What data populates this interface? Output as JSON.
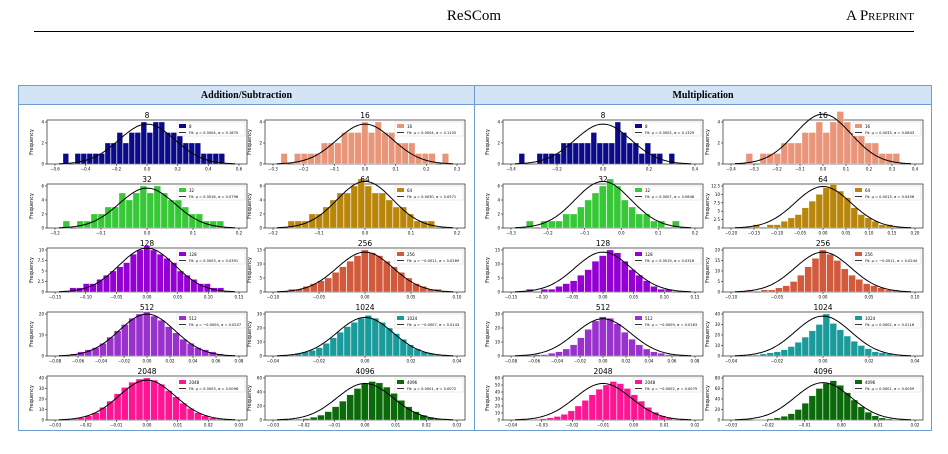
{
  "header": {
    "title": "ReSCom",
    "label": "A Preprint"
  },
  "panels": [
    {
      "title": "Addition/Subtraction"
    },
    {
      "title": "Multiplication"
    }
  ],
  "ylabel": "Frequency",
  "chart_data": [
    {
      "type": "bar",
      "panel": 0,
      "title": "8",
      "color": "#0b0b8a",
      "ymax": 4,
      "yticks": [
        0,
        2,
        4
      ],
      "xlim": [
        -0.6,
        0.6
      ],
      "xticks": [
        "−0.6",
        "−0.4",
        "−0.2",
        "0.0",
        "0.2",
        "0.4",
        "0.6"
      ],
      "values": [
        1,
        0,
        1,
        1,
        1,
        1,
        1,
        2,
        2,
        3,
        2,
        3,
        3,
        4,
        3,
        4,
        4,
        3,
        3,
        3,
        2,
        2,
        2,
        1,
        1,
        1,
        1,
        0
      ],
      "legend": [
        "8",
        "Fit: μ = 0.0004, σ = 0.1670"
      ]
    },
    {
      "type": "bar",
      "panel": 0,
      "title": "16",
      "color": "#e8957a",
      "ymax": 4,
      "yticks": [
        0,
        2,
        4
      ],
      "xlim": [
        -0.4,
        0.4
      ],
      "xticks": [
        "−0.3",
        "−0.2",
        "−0.1",
        "0.0",
        "0.1",
        "0.2",
        "0.3"
      ],
      "values": [
        1,
        0,
        1,
        1,
        1,
        1,
        2,
        2,
        2,
        3,
        3,
        3,
        4,
        3,
        4,
        3,
        3,
        2,
        2,
        2,
        1,
        1,
        1,
        0,
        1
      ],
      "legend": [
        "16",
        "Fit: μ = 0.0004, σ = 0.1105"
      ]
    },
    {
      "type": "bar",
      "panel": 0,
      "title": "32",
      "color": "#36c836",
      "ymax": 6,
      "yticks": [
        0,
        2,
        4,
        6
      ],
      "xlim": [
        -0.25,
        0.25
      ],
      "xticks": [
        "−0.2",
        "−0.1",
        "0.0",
        "0.1",
        "0.2"
      ],
      "values": [
        1,
        0,
        1,
        1,
        2,
        2,
        3,
        3,
        5,
        4,
        5,
        6,
        5,
        6,
        5,
        4,
        4,
        3,
        2,
        2,
        1,
        1,
        1,
        0
      ],
      "legend": [
        "32",
        "Fit: μ = 0.0016, σ = 0.0796"
      ]
    },
    {
      "type": "bar",
      "panel": 0,
      "title": "64",
      "color": "#b8860b",
      "ymax": 6,
      "yticks": [
        0,
        2,
        4,
        6
      ],
      "xlim": [
        -0.22,
        0.22
      ],
      "xticks": [
        "−0.2",
        "−0.1",
        "0.0",
        "0.1",
        "0.2"
      ],
      "values": [
        0,
        1,
        1,
        1,
        2,
        2,
        3,
        4,
        5,
        5,
        6,
        7,
        6,
        5,
        5,
        4,
        3,
        3,
        2,
        1,
        1,
        1,
        0,
        0
      ],
      "legend": [
        "64",
        "Fit: μ = 0.0030, σ = 0.0571"
      ]
    },
    {
      "type": "bar",
      "panel": 0,
      "title": "128",
      "color": "#9400d3",
      "ymax": 10,
      "yticks": [
        0,
        2.5,
        5.0,
        7.5,
        10.0
      ],
      "xlim": [
        -0.16,
        0.16
      ],
      "xticks": [
        "−0.15",
        "−0.10",
        "−0.05",
        "0.00",
        "0.05",
        "0.10",
        "0.15"
      ],
      "values": [
        0,
        1,
        1,
        2,
        2,
        3,
        4,
        5,
        6,
        7,
        9,
        10,
        11,
        10,
        9,
        8,
        7,
        5,
        4,
        3,
        2,
        2,
        1,
        1,
        0
      ],
      "legend": [
        "128",
        "Fit: μ = 0.0003, σ = 0.0391"
      ]
    },
    {
      "type": "bar",
      "panel": 0,
      "title": "256",
      "color": "#d25a3c",
      "ymax": 15,
      "yticks": [
        0,
        5,
        10,
        15
      ],
      "xlim": [
        -0.11,
        0.11
      ],
      "xticks": [
        "−0.10",
        "−0.05",
        "0.00",
        "0.05",
        "0.10"
      ],
      "values": [
        0,
        1,
        1,
        2,
        3,
        4,
        5,
        7,
        9,
        11,
        13,
        15,
        14,
        13,
        11,
        9,
        7,
        5,
        3,
        2,
        1,
        1,
        0
      ],
      "legend": [
        "256",
        "Fit: μ = −0.0011, σ = 0.0289"
      ]
    },
    {
      "type": "bar",
      "panel": 0,
      "title": "512",
      "color": "#9932cc",
      "ymax": 20,
      "yticks": [
        0,
        10,
        20
      ],
      "xlim": [
        -0.085,
        0.085
      ],
      "xticks": [
        "−0.08",
        "−0.06",
        "−0.04",
        "−0.02",
        "0.00",
        "0.02",
        "0.04",
        "0.06",
        "0.08"
      ],
      "values": [
        0,
        1,
        2,
        3,
        4,
        6,
        9,
        12,
        15,
        18,
        20,
        21,
        19,
        17,
        14,
        11,
        8,
        6,
        4,
        3,
        2,
        1,
        0
      ],
      "legend": [
        "512",
        "Fit: μ = −0.0004, σ = 0.0207"
      ]
    },
    {
      "type": "bar",
      "panel": 0,
      "title": "1024",
      "color": "#1a9b9b",
      "ymax": 30,
      "yticks": [
        0,
        10,
        20,
        30
      ],
      "xlim": [
        -0.065,
        0.065
      ],
      "xticks": [
        "−0.04",
        "−0.02",
        "0.00",
        "0.02",
        "0.04"
      ],
      "values": [
        0,
        1,
        2,
        3,
        4,
        6,
        9,
        13,
        17,
        21,
        24,
        27,
        29,
        27,
        24,
        20,
        16,
        12,
        8,
        5,
        3,
        2,
        1,
        0
      ],
      "legend": [
        "1024",
        "Fit: μ = −0.0007, σ = 0.0143"
      ]
    },
    {
      "type": "bar",
      "panel": 0,
      "title": "2048",
      "color": "#ff1493",
      "ymax": 40,
      "yticks": [
        0,
        10,
        20,
        30,
        40
      ],
      "xlim": [
        -0.035,
        0.035
      ],
      "xticks": [
        "−0.03",
        "−0.02",
        "−0.01",
        "0.00",
        "0.01",
        "0.02",
        "0.03"
      ],
      "values": [
        0,
        1,
        2,
        4,
        7,
        12,
        18,
        25,
        31,
        36,
        39,
        40,
        38,
        34,
        28,
        22,
        16,
        11,
        7,
        4,
        2,
        1,
        0
      ],
      "legend": [
        "2048",
        "Fit: μ = 0.0003, σ = 0.0096"
      ]
    },
    {
      "type": "bar",
      "panel": 0,
      "title": "4096",
      "color": "#0a6a0a",
      "ymax": 60,
      "yticks": [
        0,
        20,
        40,
        60
      ],
      "xlim": [
        -0.035,
        0.035
      ],
      "xticks": [
        "−0.03",
        "−0.02",
        "−0.01",
        "0.00",
        "0.01",
        "0.02",
        "0.03"
      ],
      "values": [
        0,
        1,
        1,
        2,
        4,
        7,
        12,
        19,
        27,
        36,
        45,
        52,
        55,
        53,
        47,
        38,
        28,
        19,
        12,
        7,
        4,
        2,
        1
      ],
      "legend": [
        "4096",
        "Fit: μ = 0.0001, σ = 0.0072"
      ]
    },
    {
      "type": "bar",
      "panel": 1,
      "title": "8",
      "color": "#0b0b8a",
      "ymax": 4,
      "yticks": [
        0,
        2,
        4
      ],
      "xlim": [
        -0.55,
        0.5
      ],
      "xticks": [
        "−0.4",
        "−0.2",
        "0.0",
        "0.2",
        "0.4"
      ],
      "values": [
        1,
        0,
        0,
        1,
        1,
        1,
        1,
        2,
        2,
        2,
        2,
        2,
        3,
        2,
        2,
        2,
        4,
        3,
        2,
        2,
        1,
        2,
        1,
        1,
        0,
        1,
        0,
        0
      ],
      "legend": [
        "8",
        "Fit: μ = 0.0002, σ = 0.1329"
      ]
    },
    {
      "type": "bar",
      "panel": 1,
      "title": "16",
      "color": "#e8957a",
      "ymax": 4,
      "yticks": [
        0,
        2,
        4
      ],
      "xlim": [
        -0.45,
        0.45
      ],
      "xticks": [
        "−0.4",
        "−0.3",
        "−0.2",
        "−0.1",
        "0.0",
        "0.1",
        "0.2",
        "0.3",
        "0.4"
      ],
      "values": [
        0,
        1,
        0,
        1,
        1,
        1,
        2,
        2,
        2,
        3,
        3,
        4,
        3,
        4,
        5,
        4,
        3,
        3,
        2,
        2,
        1,
        1,
        1,
        0
      ],
      "legend": [
        "16",
        "Fit: μ = 0.0033, σ = 0.0843"
      ]
    },
    {
      "type": "bar",
      "panel": 1,
      "title": "32",
      "color": "#36c836",
      "ymax": 6,
      "yticks": [
        0,
        2,
        4,
        6
      ],
      "xlim": [
        -0.3,
        0.25
      ],
      "xticks": [
        "−0.3",
        "−0.2",
        "−0.1",
        "0.0",
        "0.1",
        "0.2"
      ],
      "values": [
        0,
        1,
        0,
        1,
        1,
        1,
        2,
        2,
        3,
        4,
        5,
        6,
        7,
        6,
        4,
        3,
        2,
        2,
        1,
        1,
        0,
        1,
        0
      ],
      "legend": [
        "32",
        "Fit: μ = 0.0007, σ = 0.0646"
      ]
    },
    {
      "type": "bar",
      "panel": 1,
      "title": "64",
      "color": "#b8860b",
      "ymax": 12.5,
      "yticks": [
        0,
        2.5,
        5.0,
        7.5,
        10.0,
        12.5
      ],
      "xlim": [
        -0.21,
        0.21
      ],
      "xticks": [
        "−0.20",
        "−0.15",
        "−0.10",
        "−0.05",
        "0.00",
        "0.05",
        "0.10",
        "0.15",
        "0.20"
      ],
      "values": [
        0,
        0,
        1,
        0,
        1,
        1,
        2,
        3,
        4,
        6,
        8,
        10,
        12,
        13,
        11,
        9,
        6,
        4,
        3,
        2,
        1,
        1,
        0,
        0
      ],
      "legend": [
        "64",
        "Fit: μ = 0.0013, σ = 0.0456"
      ]
    },
    {
      "type": "bar",
      "panel": 1,
      "title": "128",
      "color": "#9400d3",
      "ymax": 15,
      "yticks": [
        0,
        5,
        10,
        15
      ],
      "xlim": [
        -0.16,
        0.16
      ],
      "xticks": [
        "−0.15",
        "−0.10",
        "−0.05",
        "0.00",
        "0.05",
        "0.10",
        "0.15"
      ],
      "values": [
        0,
        1,
        0,
        1,
        1,
        2,
        3,
        4,
        6,
        8,
        11,
        13,
        15,
        14,
        11,
        8,
        6,
        4,
        2,
        1,
        1,
        0,
        0
      ],
      "legend": [
        "128",
        "Fit: μ = 0.0019, σ = 0.0318"
      ]
    },
    {
      "type": "bar",
      "panel": 1,
      "title": "256",
      "color": "#d25a3c",
      "ymax": 20,
      "yticks": [
        0,
        5,
        10,
        15,
        20
      ],
      "xlim": [
        -0.11,
        0.11
      ],
      "xticks": [
        "−0.10",
        "−0.05",
        "0.00",
        "0.05",
        "0.10"
      ],
      "values": [
        0,
        1,
        0,
        1,
        1,
        2,
        3,
        5,
        8,
        12,
        16,
        20,
        18,
        15,
        11,
        8,
        6,
        4,
        3,
        2,
        1,
        1,
        0
      ],
      "legend": [
        "256",
        "Fit: μ = −0.0011, σ = 0.0244"
      ]
    },
    {
      "type": "bar",
      "panel": 1,
      "title": "512",
      "color": "#9932cc",
      "ymax": 30,
      "yticks": [
        0,
        10,
        20,
        30
      ],
      "xlim": [
        -0.085,
        0.085
      ],
      "xticks": [
        "−0.08",
        "−0.06",
        "−0.04",
        "−0.02",
        "0.00",
        "0.02",
        "0.04",
        "0.06",
        "0.08"
      ],
      "values": [
        0,
        0,
        1,
        1,
        2,
        3,
        5,
        8,
        13,
        19,
        25,
        28,
        27,
        23,
        17,
        12,
        8,
        5,
        3,
        2,
        1,
        1,
        0
      ],
      "legend": [
        "512",
        "Fit: μ = −0.0009, σ = 0.0163"
      ]
    },
    {
      "type": "bar",
      "panel": 1,
      "title": "1024",
      "color": "#1a9b9b",
      "ymax": 40,
      "yticks": [
        0,
        10,
        20,
        30,
        40
      ],
      "xlim": [
        -0.065,
        0.065
      ],
      "xticks": [
        "−0.04",
        "−0.02",
        "0.00",
        "0.02",
        "0.04"
      ],
      "values": [
        0,
        1,
        1,
        2,
        3,
        4,
        6,
        9,
        13,
        18,
        24,
        30,
        40,
        31,
        25,
        19,
        14,
        10,
        7,
        4,
        3,
        2,
        1,
        0
      ],
      "legend": [
        "1024",
        "Fit: μ = 0.0002, σ = 0.0116"
      ]
    },
    {
      "type": "bar",
      "panel": 1,
      "title": "2048",
      "color": "#ff1493",
      "ymax": 60,
      "yticks": [
        0,
        10,
        20,
        30,
        40,
        50,
        60
      ],
      "xlim": [
        -0.045,
        0.03
      ],
      "xticks": [
        "−0.04",
        "−0.03",
        "−0.02",
        "−0.01",
        "0.00",
        "0.01",
        "0.02"
      ],
      "values": [
        0,
        1,
        1,
        2,
        3,
        5,
        8,
        13,
        20,
        28,
        36,
        44,
        50,
        55,
        52,
        45,
        36,
        27,
        18,
        11,
        6,
        3,
        1,
        0
      ],
      "legend": [
        "2048",
        "Fit: μ = −0.0002, σ = 0.0079"
      ]
    },
    {
      "type": "bar",
      "panel": 1,
      "title": "4096",
      "color": "#0a6a0a",
      "ymax": 80,
      "yticks": [
        0,
        20,
        40,
        60,
        80
      ],
      "xlim": [
        -0.035,
        0.035
      ],
      "xticks": [
        "−0.03",
        "−0.02",
        "−0.01",
        "0.00",
        "0.01",
        "0.02"
      ],
      "values": [
        0,
        0,
        1,
        1,
        2,
        4,
        7,
        12,
        20,
        32,
        46,
        60,
        70,
        75,
        66,
        52,
        38,
        25,
        15,
        8,
        4,
        2,
        1,
        0
      ],
      "legend": [
        "4096",
        "Fit: μ = 0.0001, σ = 0.0059"
      ]
    }
  ]
}
